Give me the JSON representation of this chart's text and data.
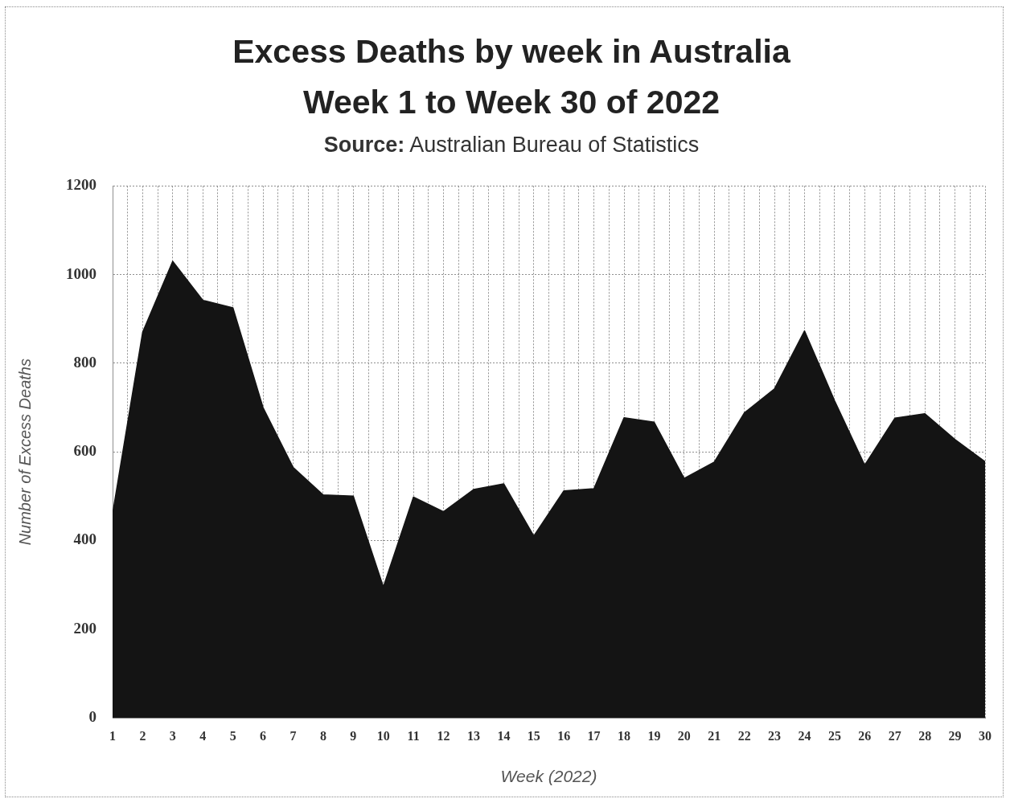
{
  "chart_data": {
    "type": "area",
    "title": "Excess Deaths by week in Australia Week 1 to Week 30 of 2022",
    "subtitle": "Source: Australian Bureau of Statistics",
    "xlabel": "Week (2022)",
    "ylabel": "Number of Excess Deaths",
    "x": [
      1,
      2,
      3,
      4,
      5,
      6,
      7,
      8,
      9,
      10,
      11,
      12,
      13,
      14,
      15,
      16,
      17,
      18,
      19,
      20,
      21,
      22,
      23,
      24,
      25,
      26,
      27,
      28,
      29,
      30
    ],
    "values": [
      460,
      870,
      1030,
      942,
      925,
      700,
      565,
      503,
      500,
      295,
      498,
      465,
      515,
      528,
      410,
      512,
      517,
      677,
      667,
      540,
      577,
      688,
      742,
      873,
      715,
      570,
      676,
      686,
      628,
      578
    ],
    "color": "#141414",
    "marker": "none",
    "xlim": [
      1,
      30
    ],
    "xticks": [
      1,
      {
        "value": 1.5,
        "label": null
      },
      2,
      {
        "value": 2.5,
        "label": null
      },
      3,
      {
        "value": 3.5,
        "label": null
      },
      4,
      {
        "value": 4.5,
        "label": null
      },
      5,
      {
        "value": 5.5,
        "label": null
      },
      6,
      {
        "value": 6.5,
        "label": null
      },
      7,
      {
        "value": 7.5,
        "label": null
      },
      8,
      {
        "value": 8.5,
        "label": null
      },
      9,
      {
        "value": 9.5,
        "label": null
      },
      10,
      {
        "value": 10.5,
        "label": null
      },
      11,
      {
        "value": 11.5,
        "label": null
      },
      12,
      {
        "value": 12.5,
        "label": null
      },
      13,
      {
        "value": 13.5,
        "label": null
      },
      14,
      {
        "value": 14.5,
        "label": null
      },
      15,
      {
        "value": 15.5,
        "label": null
      },
      16,
      {
        "value": 16.5,
        "label": null
      },
      17,
      {
        "value": 17.5,
        "label": null
      },
      18,
      {
        "value": 18.5,
        "label": null
      },
      19,
      {
        "value": 19.5,
        "label": null
      },
      20,
      {
        "value": 20.5,
        "label": null
      },
      21,
      {
        "value": 21.5,
        "label": null
      },
      22,
      {
        "value": 22.5,
        "label": null
      },
      23,
      {
        "value": 23.5,
        "label": null
      },
      24,
      {
        "value": 24.5,
        "label": null
      },
      25,
      {
        "value": 25.5,
        "label": null
      },
      26,
      {
        "value": 26.5,
        "label": null
      },
      27,
      {
        "value": 27.5,
        "label": null
      },
      28,
      {
        "value": 28.5,
        "label": null
      },
      29,
      {
        "value": 29.5,
        "label": null
      },
      30
    ],
    "ylim": [
      0,
      1200
    ],
    "yticks": [
      0,
      200,
      400,
      600,
      800,
      1000,
      1200
    ],
    "grid": true
  }
}
